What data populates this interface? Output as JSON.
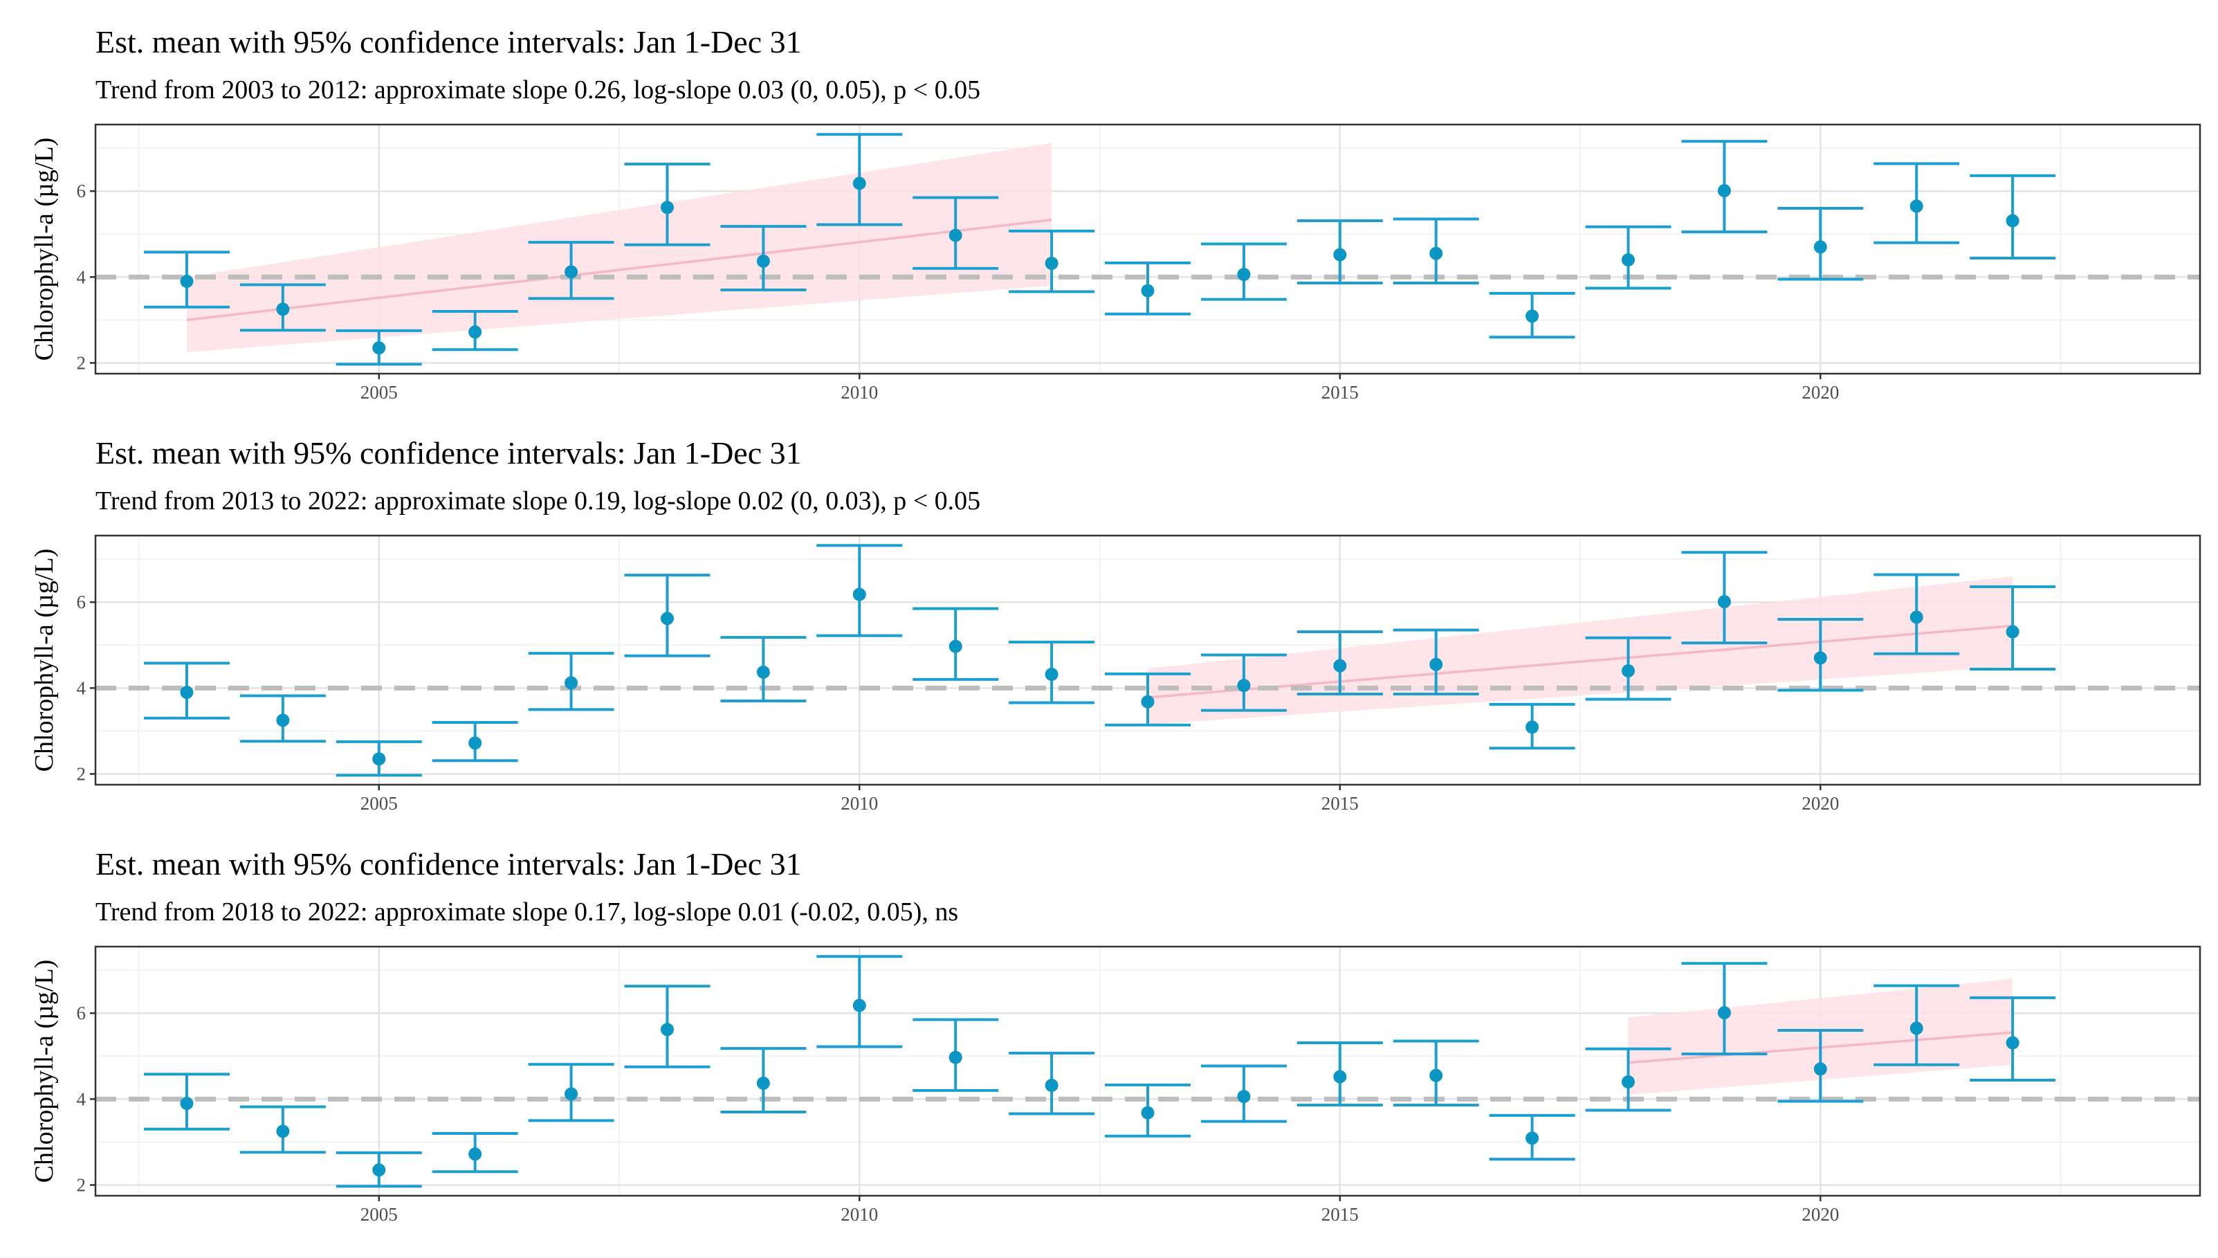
{
  "chart_data": [
    {
      "type": "scatter",
      "title": "Est. mean with 95% confidence intervals: Jan 1-Dec 31",
      "subtitle": "Trend from 2003 to 2012: approximate slope 0.26, log-slope 0.03 (0, 0.05), p < 0.05",
      "ylabel": "Chlorophyll-a (µg/L)",
      "xlabel": "",
      "x_ticks": [
        "2005",
        "2010",
        "2015",
        "2020"
      ],
      "y_ticks": [
        "2",
        "4",
        "6"
      ],
      "xlim": [
        2002.05,
        2023.95
      ],
      "ylim": [
        1.75,
        7.55
      ],
      "reference_line": 4,
      "series": [
        {
          "x": [
            2003,
            2004,
            2005,
            2006,
            2007,
            2008,
            2009,
            2010,
            2011,
            2012,
            2013,
            2014,
            2015,
            2016,
            2017,
            2018,
            2019,
            2020,
            2021,
            2022
          ],
          "y": [
            3.9,
            3.25,
            2.35,
            2.72,
            4.12,
            5.62,
            4.37,
            6.18,
            4.97,
            4.32,
            3.68,
            4.06,
            4.52,
            4.55,
            3.09,
            4.4,
            6.01,
            4.7,
            5.65,
            5.31
          ],
          "lower": [
            3.3,
            2.76,
            1.97,
            2.31,
            3.5,
            4.75,
            3.7,
            5.22,
            4.2,
            3.66,
            3.14,
            3.48,
            3.86,
            3.86,
            2.6,
            3.74,
            5.05,
            3.95,
            4.8,
            4.44
          ],
          "upper": [
            4.58,
            3.82,
            2.75,
            3.2,
            4.81,
            6.63,
            5.18,
            7.32,
            5.85,
            5.07,
            4.33,
            4.77,
            5.31,
            5.35,
            3.62,
            5.17,
            7.16,
            5.6,
            6.64,
            6.36
          ]
        }
      ],
      "trend": {
        "x": [
          2003,
          2012
        ],
        "y": [
          3.0,
          5.33
        ],
        "lower": [
          2.25,
          3.8
        ],
        "upper": [
          4.0,
          7.12
        ]
      },
      "grid": true,
      "colors": {
        "points": "#0b96c4",
        "errorbars": "#1c9fd0",
        "trend_line": "#f4b9c4",
        "trend_band": "#fde1e6",
        "reference": "#bdbdbd"
      }
    },
    {
      "type": "scatter",
      "title": "Est. mean with 95% confidence intervals: Jan 1-Dec 31",
      "subtitle": "Trend from 2013 to 2022: approximate slope 0.19, log-slope 0.02 (0, 0.03), p < 0.05",
      "ylabel": "Chlorophyll-a (µg/L)",
      "xlabel": "",
      "x_ticks": [
        "2005",
        "2010",
        "2015",
        "2020"
      ],
      "y_ticks": [
        "2",
        "4",
        "6"
      ],
      "xlim": [
        2002.05,
        2023.95
      ],
      "ylim": [
        1.75,
        7.55
      ],
      "reference_line": 4,
      "series": [
        {
          "x": [
            2003,
            2004,
            2005,
            2006,
            2007,
            2008,
            2009,
            2010,
            2011,
            2012,
            2013,
            2014,
            2015,
            2016,
            2017,
            2018,
            2019,
            2020,
            2021,
            2022
          ],
          "y": [
            3.9,
            3.25,
            2.35,
            2.72,
            4.12,
            5.62,
            4.37,
            6.18,
            4.97,
            4.32,
            3.68,
            4.06,
            4.52,
            4.55,
            3.09,
            4.4,
            6.01,
            4.7,
            5.65,
            5.31
          ],
          "lower": [
            3.3,
            2.76,
            1.97,
            2.31,
            3.5,
            4.75,
            3.7,
            5.22,
            4.2,
            3.66,
            3.14,
            3.48,
            3.86,
            3.86,
            2.6,
            3.74,
            5.05,
            3.95,
            4.8,
            4.44
          ],
          "upper": [
            4.58,
            3.82,
            2.75,
            3.2,
            4.81,
            6.63,
            5.18,
            7.32,
            5.85,
            5.07,
            4.33,
            4.77,
            5.31,
            5.35,
            3.62,
            5.17,
            7.16,
            5.6,
            6.64,
            6.36
          ]
        }
      ],
      "trend": {
        "x": [
          2013,
          2022
        ],
        "y": [
          3.78,
          5.45
        ],
        "lower": [
          3.15,
          4.5
        ],
        "upper": [
          4.45,
          6.6
        ]
      },
      "grid": true,
      "colors": {
        "points": "#0b96c4",
        "errorbars": "#1c9fd0",
        "trend_line": "#f4b9c4",
        "trend_band": "#fde1e6",
        "reference": "#bdbdbd"
      }
    },
    {
      "type": "scatter",
      "title": "Est. mean with 95% confidence intervals: Jan 1-Dec 31",
      "subtitle": "Trend from 2018 to 2022: approximate slope 0.17, log-slope 0.01 (-0.02, 0.05), ns",
      "ylabel": "Chlorophyll-a (µg/L)",
      "xlabel": "",
      "x_ticks": [
        "2005",
        "2010",
        "2015",
        "2020"
      ],
      "y_ticks": [
        "2",
        "4",
        "6"
      ],
      "xlim": [
        2002.05,
        2023.95
      ],
      "ylim": [
        1.75,
        7.55
      ],
      "reference_line": 4,
      "series": [
        {
          "x": [
            2003,
            2004,
            2005,
            2006,
            2007,
            2008,
            2009,
            2010,
            2011,
            2012,
            2013,
            2014,
            2015,
            2016,
            2017,
            2018,
            2019,
            2020,
            2021,
            2022
          ],
          "y": [
            3.9,
            3.25,
            2.35,
            2.72,
            4.12,
            5.62,
            4.37,
            6.18,
            4.97,
            4.32,
            3.68,
            4.06,
            4.52,
            4.55,
            3.09,
            4.4,
            6.01,
            4.7,
            5.65,
            5.31
          ],
          "lower": [
            3.3,
            2.76,
            1.97,
            2.31,
            3.5,
            4.75,
            3.7,
            5.22,
            4.2,
            3.66,
            3.14,
            3.48,
            3.86,
            3.86,
            2.6,
            3.74,
            5.05,
            3.95,
            4.8,
            4.44
          ],
          "upper": [
            4.58,
            3.82,
            2.75,
            3.2,
            4.81,
            6.63,
            5.18,
            7.32,
            5.85,
            5.07,
            4.33,
            4.77,
            5.31,
            5.35,
            3.62,
            5.17,
            7.16,
            5.6,
            6.64,
            6.36
          ]
        }
      ],
      "trend": {
        "x": [
          2018,
          2022
        ],
        "y": [
          4.85,
          5.55
        ],
        "lower": [
          4.1,
          4.8
        ],
        "upper": [
          5.9,
          6.8
        ]
      },
      "grid": true,
      "colors": {
        "points": "#0b96c4",
        "errorbars": "#1c9fd0",
        "trend_line": "#f4b9c4",
        "trend_band": "#fde1e6",
        "reference": "#bdbdbd"
      }
    }
  ]
}
